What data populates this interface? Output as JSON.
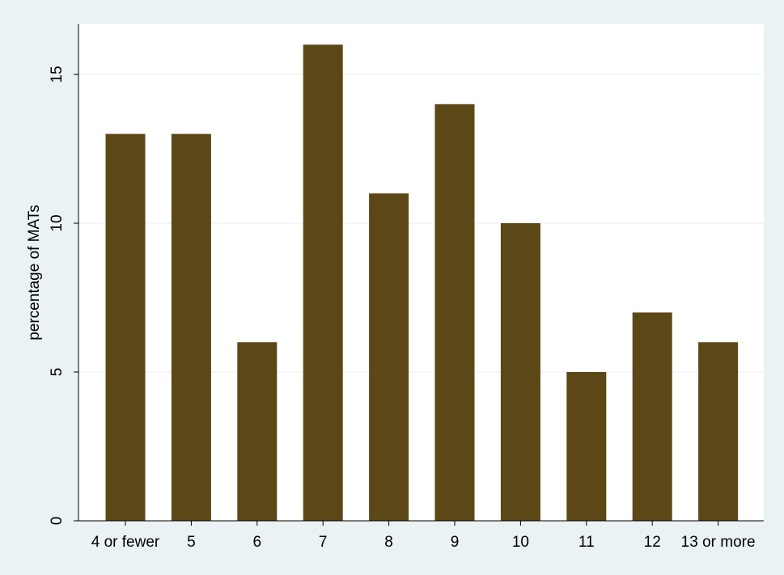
{
  "chart_data": {
    "type": "bar",
    "categories": [
      "4 or fewer",
      "5",
      "6",
      "7",
      "8",
      "9",
      "10",
      "11",
      "12",
      "13 or more"
    ],
    "values": [
      13,
      13,
      6,
      16,
      11,
      14,
      10,
      5,
      7,
      6
    ],
    "title": "",
    "xlabel": "",
    "ylabel": "percentage of MATs",
    "ylim": [
      0,
      16.5
    ],
    "yticks": [
      0,
      5,
      10,
      15
    ],
    "grid": true,
    "colors": {
      "outer_background": "#eaf2f3",
      "plot_background": "#ffffff",
      "bar": "#5c4717",
      "gridline": "#e9eef0",
      "axis": "#000000"
    }
  }
}
